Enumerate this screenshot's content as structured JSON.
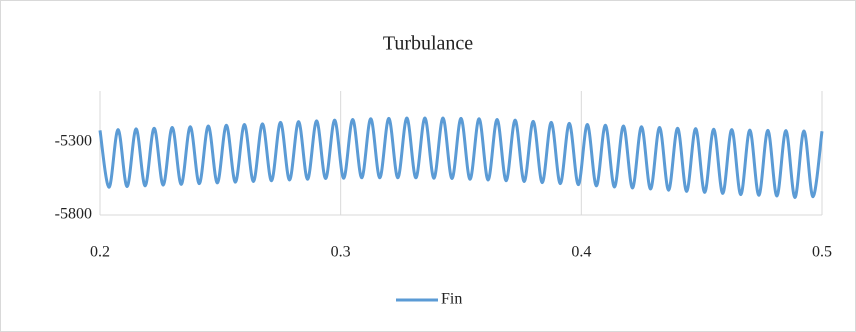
{
  "chart_data": {
    "type": "line",
    "title": "Turbulance",
    "x": [
      0.2,
      0.20375,
      0.2075,
      0.21125,
      0.215,
      0.21875,
      0.2225,
      0.22625,
      0.23,
      0.23375,
      0.2375,
      0.24125,
      0.245,
      0.24875,
      0.2525,
      0.25625,
      0.26,
      0.26375,
      0.2675,
      0.27125,
      0.275,
      0.27875,
      0.2825,
      0.28625,
      0.29,
      0.29375,
      0.2975,
      0.30125,
      0.305,
      0.30875,
      0.3125,
      0.31625,
      0.32,
      0.32375,
      0.3275,
      0.33125,
      0.335,
      0.33875,
      0.3425,
      0.34625,
      0.35,
      0.35375,
      0.3575,
      0.36125,
      0.365,
      0.36875,
      0.3725,
      0.37625,
      0.38,
      0.38375,
      0.3875,
      0.39125,
      0.395,
      0.39875,
      0.4025,
      0.40625,
      0.41,
      0.41375,
      0.4175,
      0.42125,
      0.425,
      0.42875,
      0.4325,
      0.43625,
      0.44,
      0.44375,
      0.4475,
      0.45125,
      0.455,
      0.45875,
      0.4625,
      0.46625,
      0.47,
      0.47375,
      0.4775,
      0.48125,
      0.485,
      0.48875,
      0.4925,
      0.49625,
      0.5
    ],
    "series": [
      {
        "name": "Fin",
        "color": "#5b9bd5",
        "values": [
          -5220,
          -5610,
          -5215,
          -5605,
          -5210,
          -5600,
          -5205,
          -5595,
          -5200,
          -5590,
          -5195,
          -5585,
          -5190,
          -5580,
          -5185,
          -5575,
          -5180,
          -5570,
          -5175,
          -5565,
          -5165,
          -5560,
          -5160,
          -5555,
          -5155,
          -5550,
          -5150,
          -5548,
          -5145,
          -5545,
          -5140,
          -5545,
          -5138,
          -5545,
          -5135,
          -5545,
          -5135,
          -5548,
          -5135,
          -5550,
          -5138,
          -5555,
          -5140,
          -5560,
          -5145,
          -5565,
          -5150,
          -5570,
          -5158,
          -5578,
          -5165,
          -5585,
          -5172,
          -5592,
          -5180,
          -5600,
          -5185,
          -5608,
          -5190,
          -5615,
          -5195,
          -5622,
          -5200,
          -5630,
          -5205,
          -5638,
          -5208,
          -5645,
          -5212,
          -5652,
          -5215,
          -5660,
          -5218,
          -5665,
          -5220,
          -5670,
          -5222,
          -5680,
          -5224,
          -5675,
          -5226
        ]
      }
    ],
    "xlim": [
      0.2,
      0.5
    ],
    "xticks": [
      0.2,
      0.3,
      0.4,
      0.5
    ],
    "ylim": [
      -5800,
      -4950
    ],
    "yticks": [
      -5800,
      -5300
    ],
    "grid": "x",
    "legend": "bottom"
  }
}
